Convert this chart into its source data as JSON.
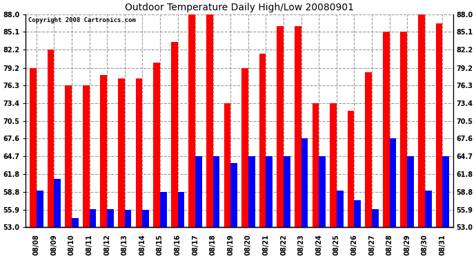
{
  "title": "Outdoor Temperature Daily High/Low 20080901",
  "copyright": "Copyright 2008 Cartronics.com",
  "dates": [
    "08/08",
    "08/09",
    "08/10",
    "08/11",
    "08/12",
    "08/13",
    "08/14",
    "08/15",
    "08/16",
    "08/17",
    "08/18",
    "08/19",
    "08/20",
    "08/21",
    "08/22",
    "08/23",
    "08/24",
    "08/25",
    "08/26",
    "08/27",
    "08/28",
    "08/29",
    "08/30",
    "08/31"
  ],
  "highs": [
    79.2,
    82.2,
    76.3,
    76.3,
    78.0,
    77.5,
    77.5,
    80.0,
    83.5,
    88.0,
    88.0,
    73.4,
    79.2,
    81.5,
    86.0,
    86.0,
    73.4,
    73.4,
    72.2,
    78.5,
    85.1,
    85.1,
    88.0,
    86.5
  ],
  "lows": [
    59.0,
    61.0,
    54.5,
    56.0,
    56.0,
    55.9,
    55.9,
    58.8,
    58.8,
    64.7,
    64.7,
    63.5,
    64.7,
    64.7,
    64.7,
    67.6,
    64.7,
    59.0,
    57.5,
    56.0,
    67.6,
    64.7,
    59.0,
    64.7
  ],
  "high_color": "#ff0000",
  "low_color": "#0000ff",
  "bg_color": "#ffffff",
  "grid_color": "#999999",
  "yticks": [
    53.0,
    55.9,
    58.8,
    61.8,
    64.7,
    67.6,
    70.5,
    73.4,
    76.3,
    79.2,
    82.2,
    85.1,
    88.0
  ],
  "ymin": 53.0,
  "ymax": 88.0,
  "bar_width": 0.38,
  "title_fontsize": 10,
  "tick_fontsize": 7,
  "copyright_fontsize": 6.5
}
